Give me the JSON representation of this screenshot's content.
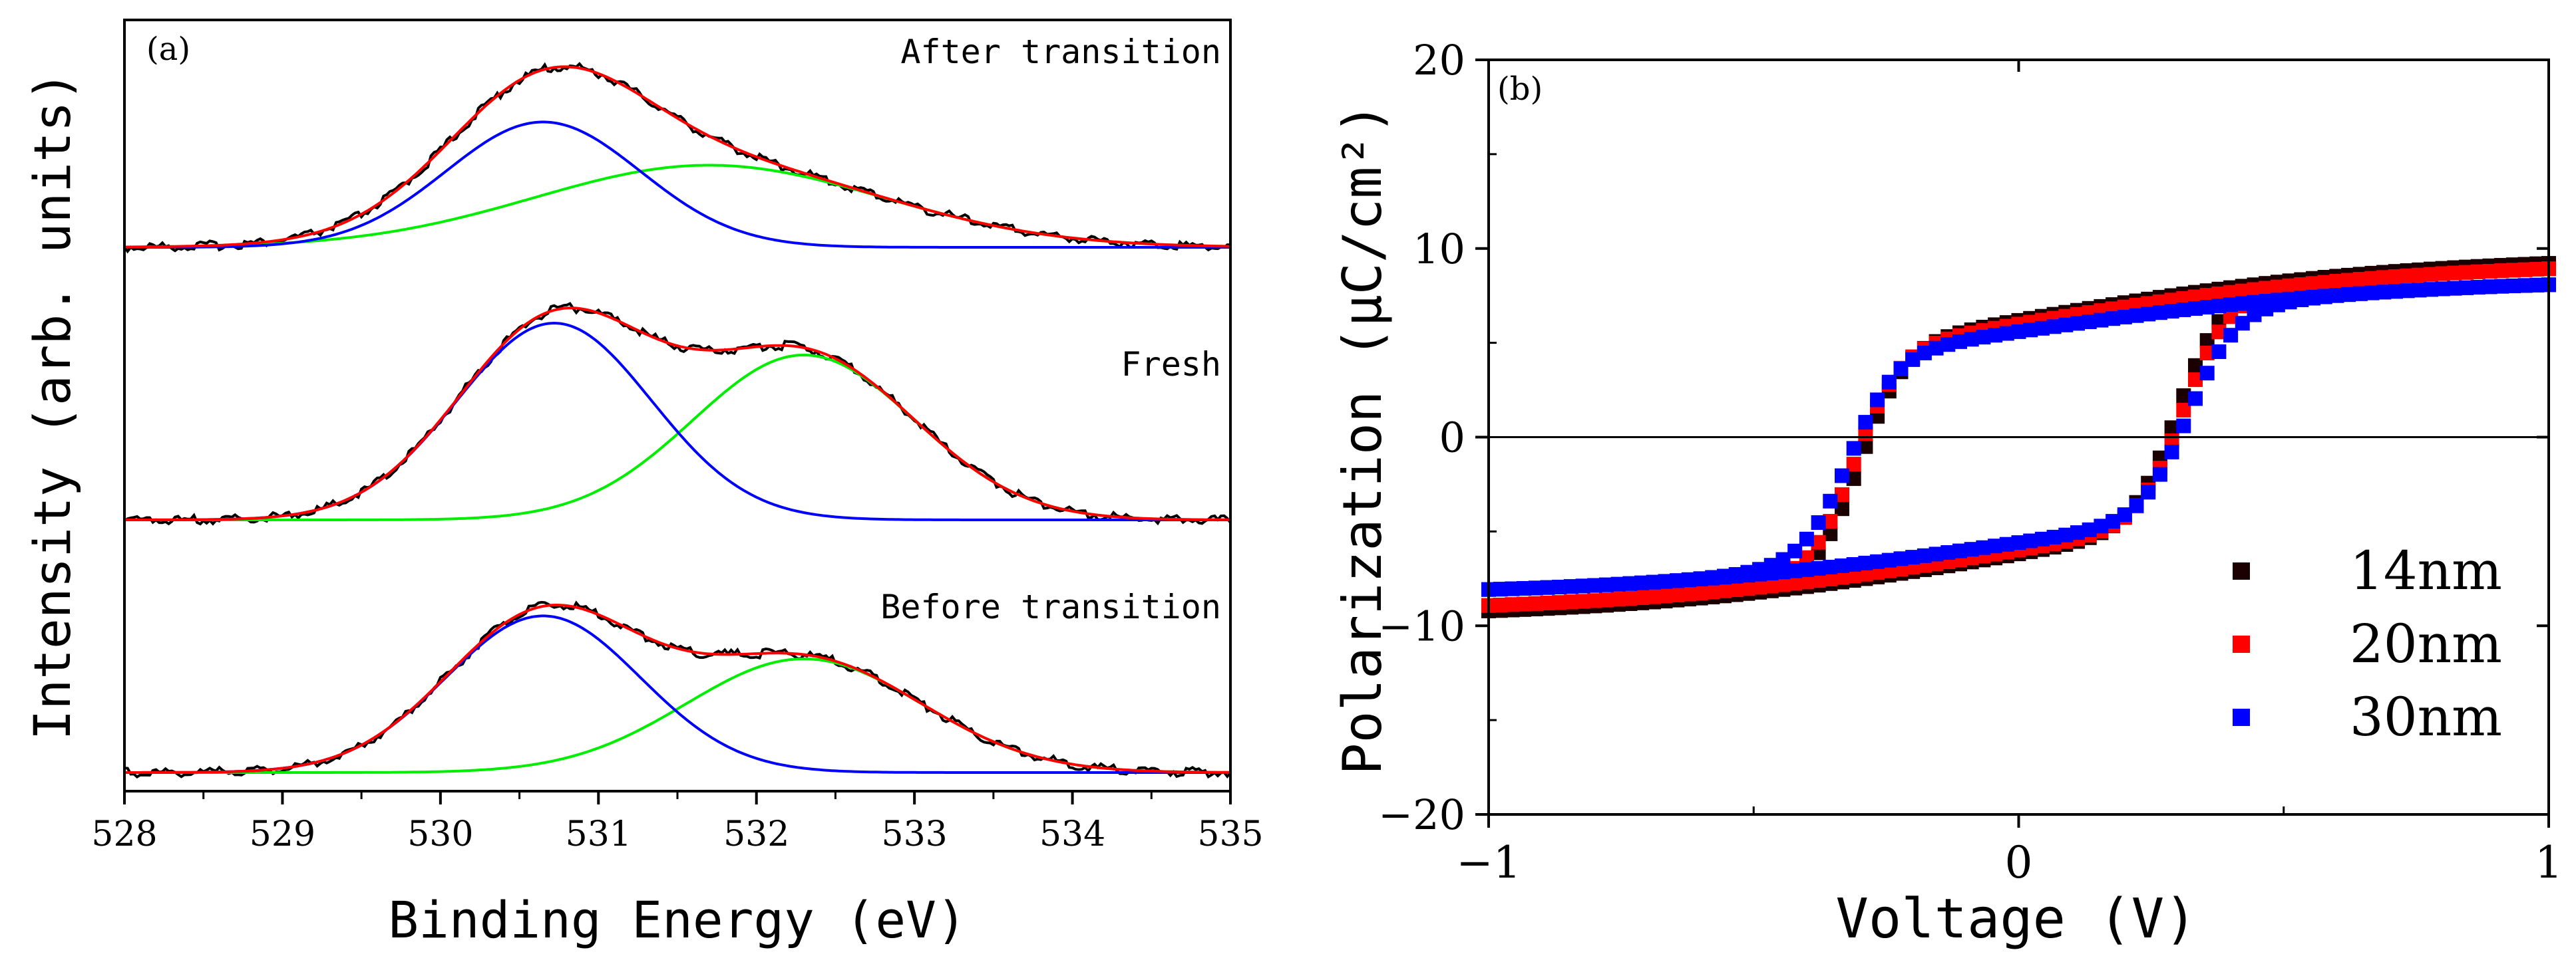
{
  "figure": {
    "panels": [
      "(a)",
      "(b)"
    ]
  },
  "chart_data": [
    {
      "type": "line",
      "panel_label": "(a)",
      "title": "",
      "xlabel": "Binding Energy (eV)",
      "ylabel": "Intensity (arb. units)",
      "xlim": [
        528,
        535
      ],
      "xticks": [
        528,
        529,
        530,
        531,
        532,
        533,
        534,
        535
      ],
      "yticks": [],
      "grid": false,
      "colors": {
        "data": "#000000",
        "fit": "#ff0000",
        "peak1": "#0000ff",
        "peak2": "#00ee00"
      },
      "spectra": [
        {
          "name": "After transition",
          "offset": 2.0,
          "peak1": {
            "center": 530.65,
            "fwhm": 1.45,
            "height": 0.58
          },
          "peak2": {
            "center": 531.7,
            "fwhm": 2.6,
            "height": 0.38
          }
        },
        {
          "name": "Fresh",
          "offset": 1.0,
          "peak1": {
            "center": 530.72,
            "fwhm": 1.45,
            "height": 0.74
          },
          "peak2": {
            "center": 532.3,
            "fwhm": 1.65,
            "height": 0.62
          }
        },
        {
          "name": "Before transition",
          "offset": 0.0,
          "peak1": {
            "center": 530.65,
            "fwhm": 1.45,
            "height": 0.62
          },
          "peak2": {
            "center": 532.3,
            "fwhm": 1.75,
            "height": 0.45
          }
        }
      ]
    },
    {
      "type": "scatter",
      "panel_label": "(b)",
      "title": "",
      "xlabel": "Voltage (V)",
      "ylabel": "Polarization (μC/cm²)",
      "xlim": [
        -1,
        1
      ],
      "ylim": [
        -20,
        20
      ],
      "xticks": [
        -1,
        0,
        1
      ],
      "yticks": [
        -20,
        -10,
        0,
        10,
        20
      ],
      "legend": "bottom-right",
      "zero_line": true,
      "series": [
        {
          "name": "14nm",
          "color": "#1a0000",
          "Psat": 9.6,
          "Pr": 6.2,
          "Vc": 0.3,
          "width": 0.085,
          "ramp": 0.9
        },
        {
          "name": "20nm",
          "color": "#ff0000",
          "Psat": 9.3,
          "Pr": 6.0,
          "Vc": 0.31,
          "width": 0.085,
          "ramp": 0.92
        },
        {
          "name": "30nm",
          "color": "#0000ff",
          "Psat": 8.4,
          "Pr": 5.6,
          "Vc": 0.32,
          "width": 0.09,
          "ramp": 0.95
        }
      ]
    }
  ]
}
